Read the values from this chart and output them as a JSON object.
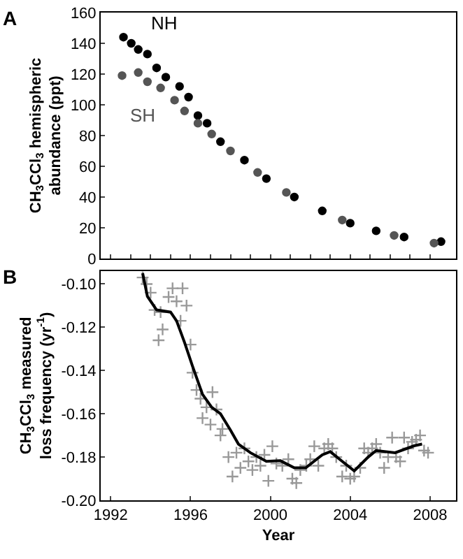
{
  "chart_data": [
    {
      "type": "scatter",
      "annotations": [
        "A"
      ],
      "ylabel": "CH$_{3}$CCl$_{3}$ hemispheric\nabundance (ppt)",
      "xlim": [
        1991.5,
        2009.3
      ],
      "xticks": [
        {
          "value": 1992,
          "label": null
        },
        {
          "value": 1993,
          "label": null
        },
        {
          "value": 1994,
          "label": null
        },
        {
          "value": 1995,
          "label": null
        },
        {
          "value": 1996,
          "label": null
        },
        {
          "value": 1997,
          "label": null
        },
        {
          "value": 1998,
          "label": null
        },
        {
          "value": 1999,
          "label": null
        },
        {
          "value": 2000,
          "label": null
        },
        {
          "value": 2001,
          "label": null
        },
        {
          "value": 2002,
          "label": null
        },
        {
          "value": 2003,
          "label": null
        },
        {
          "value": 2004,
          "label": null
        },
        {
          "value": 2005,
          "label": null
        },
        {
          "value": 2006,
          "label": null
        },
        {
          "value": 2007,
          "label": null
        },
        {
          "value": 2008,
          "label": null
        }
      ],
      "ylim": [
        0,
        160
      ],
      "yticks": [
        0,
        20,
        40,
        60,
        80,
        100,
        120,
        140,
        160
      ],
      "tick_labels": "y",
      "marker": "circle",
      "legend": false,
      "series": [
        {
          "name": "NH",
          "color": "#000000",
          "x": [
            1992.64,
            1993.03,
            1993.38,
            1993.84,
            1994.3,
            1994.76,
            1995.45,
            1995.9,
            1996.37,
            1996.83,
            1997.5,
            1998.7,
            1999.8,
            2001.2,
            2002.6,
            2004.0,
            2005.3,
            2006.7,
            2008.55
          ],
          "values": [
            144,
            140,
            136,
            133,
            124,
            118,
            112,
            105,
            93,
            88,
            76,
            64,
            52,
            40,
            31,
            23,
            18,
            14,
            11
          ]
        },
        {
          "name": "SH",
          "color": "#555555",
          "x": [
            1992.57,
            1993.38,
            1993.84,
            1994.5,
            1995.2,
            1995.7,
            1996.37,
            1997.06,
            1998.0,
            1999.36,
            2000.8,
            2003.6,
            2006.2,
            2008.2
          ],
          "values": [
            119,
            121,
            115,
            111,
            103,
            96,
            88,
            81,
            70,
            56,
            43,
            25,
            15,
            10
          ]
        }
      ]
    },
    {
      "type": "scatter",
      "annotations": [
        "B"
      ],
      "xlabel": "Year",
      "ylabel": "CH$_{3}$CCl$_{3}$ measured\nloss frequency (yr$^{-1}$)",
      "xlim": [
        1991.5,
        2009.3
      ],
      "xticks": [
        1992,
        1996,
        2000,
        2004,
        2008
      ],
      "ylim": [
        -0.2,
        -0.094
      ],
      "yticks": [
        {
          "value": -0.2,
          "label": "-0.20"
        },
        -0.18,
        -0.16,
        -0.14,
        -0.12,
        {
          "value": -0.1,
          "label": "-0.10"
        }
      ],
      "legend": false,
      "series": [
        {
          "color": "#999999",
          "marker": "cross",
          "x": [
            1993.6,
            1993.8,
            1994.0,
            1994.2,
            1994.4,
            1994.5,
            1994.6,
            1994.9,
            1995.1,
            1995.3,
            1995.5,
            1995.6,
            1995.8,
            1996.0,
            1996.1,
            1996.3,
            1996.5,
            1996.6,
            1996.8,
            1997.0,
            1997.1,
            1997.3,
            1997.5,
            1997.6,
            1997.9,
            1998.1,
            1998.3,
            1998.5,
            1998.7,
            1998.9,
            1999.1,
            1999.3,
            1999.5,
            1999.7,
            1999.9,
            2000.1,
            2000.3,
            2000.6,
            2000.9,
            2001.1,
            2001.3,
            2001.5,
            2001.8,
            2002.0,
            2002.2,
            2002.4,
            2002.7,
            2002.9,
            2003.1,
            2003.3,
            2003.6,
            2003.8,
            2004.0,
            2004.2,
            2004.5,
            2004.7,
            2004.9,
            2005.1,
            2005.3,
            2005.5,
            2005.7,
            2005.9,
            2006.1,
            2006.3,
            2006.5,
            2006.7,
            2006.9,
            2007.1,
            2007.3,
            2007.5,
            2007.7,
            2007.9
          ],
          "values": [
            -0.097,
            -0.1,
            -0.104,
            -0.112,
            -0.126,
            -0.113,
            -0.121,
            -0.106,
            -0.102,
            -0.108,
            -0.117,
            -0.102,
            -0.11,
            -0.128,
            -0.141,
            -0.149,
            -0.153,
            -0.162,
            -0.157,
            -0.165,
            -0.15,
            -0.158,
            -0.17,
            -0.167,
            -0.18,
            -0.189,
            -0.178,
            -0.185,
            -0.176,
            -0.182,
            -0.186,
            -0.18,
            -0.184,
            -0.179,
            -0.191,
            -0.175,
            -0.183,
            -0.184,
            -0.181,
            -0.19,
            -0.192,
            -0.186,
            -0.184,
            -0.181,
            -0.175,
            -0.184,
            -0.176,
            -0.174,
            -0.176,
            -0.18,
            -0.189,
            -0.184,
            -0.19,
            -0.189,
            -0.185,
            -0.176,
            -0.178,
            -0.176,
            -0.174,
            -0.178,
            -0.185,
            -0.18,
            -0.171,
            -0.18,
            -0.182,
            -0.171,
            -0.176,
            -0.173,
            -0.172,
            -0.17,
            -0.177,
            -0.178
          ]
        },
        {
          "type": "line",
          "color": "#000000",
          "marker": "none",
          "line_style": "solid",
          "x": [
            1993.6,
            1993.84,
            1994.3,
            1995.0,
            1995.3,
            1995.7,
            1996.1,
            1996.6,
            1997.06,
            1997.5,
            1998.0,
            1998.4,
            1999.0,
            1999.8,
            2000.5,
            2001.2,
            2001.77,
            2002.6,
            2003.0,
            2003.6,
            2004.2,
            2004.9,
            2005.3,
            2006.25,
            2007.2,
            2007.6
          ],
          "values": [
            -0.095,
            -0.1057,
            -0.112,
            -0.113,
            -0.117,
            -0.127,
            -0.138,
            -0.151,
            -0.157,
            -0.16,
            -0.1675,
            -0.174,
            -0.178,
            -0.182,
            -0.1817,
            -0.185,
            -0.185,
            -0.179,
            -0.1775,
            -0.182,
            -0.1864,
            -0.18,
            -0.177,
            -0.178,
            -0.1748,
            -0.174
          ]
        }
      ]
    }
  ]
}
